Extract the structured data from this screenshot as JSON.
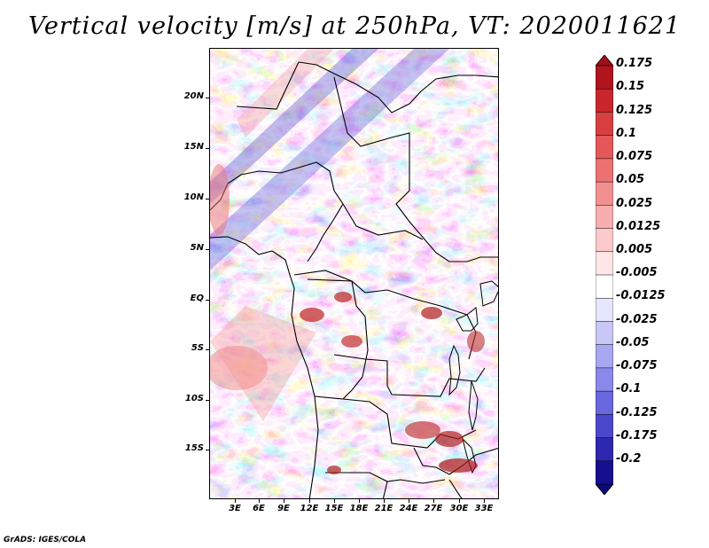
{
  "title": "Vertical velocity [m/s] at 250hPa, VT: 2020011621",
  "footer": "GrADS: IGES/COLA",
  "lat_labels": [
    "20N",
    "15N",
    "10N",
    "5N",
    "EQ",
    "5S",
    "10S",
    "15S"
  ],
  "lon_labels": [
    "3E",
    "6E",
    "9E",
    "12E",
    "15E",
    "18E",
    "21E",
    "24E",
    "27E",
    "30E",
    "33E"
  ],
  "colorbar": {
    "labels": [
      "0.175",
      "0.15",
      "0.125",
      "0.1",
      "0.075",
      "0.05",
      "0.025",
      "0.0125",
      "0.005",
      "-0.005",
      "-0.0125",
      "-0.025",
      "-0.05",
      "-0.075",
      "-0.1",
      "-0.125",
      "-0.175",
      "-0.2"
    ],
    "colors": [
      "#b0141c",
      "#c8262c",
      "#d8403f",
      "#e4585a",
      "#ec7272",
      "#f29090",
      "#f7aeae",
      "#fbcaca",
      "#fee6e6",
      "#ffffff",
      "#e6e6fc",
      "#c8c8f6",
      "#a8a8f0",
      "#8a88ea",
      "#6a68de",
      "#4c48cc",
      "#2e28b0",
      "#16108e"
    ],
    "top_arrow_color": "#a01018",
    "bottom_arrow_color": "#0c0878"
  }
}
